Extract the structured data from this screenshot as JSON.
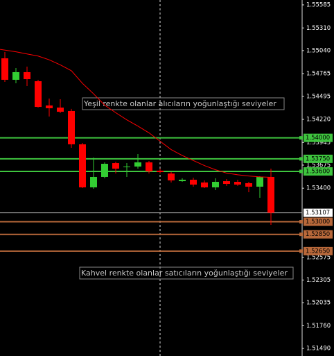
{
  "chart_data": {
    "type": "candlestick",
    "open": [
      1.54948,
      1.54692,
      1.54783,
      1.54675,
      1.54386,
      1.54361,
      1.5432,
      1.53923,
      1.5341,
      1.53534,
      1.53699,
      1.5365,
      1.53658,
      1.53708,
      1.53609,
      1.53575,
      1.53484,
      1.53501,
      1.53468,
      1.5341,
      1.53484,
      1.53476,
      1.5346,
      1.53418,
      1.53534
    ],
    "high": [
      1.55023,
      1.54832,
      1.54849,
      1.54692,
      1.54469,
      1.5446,
      1.54345,
      1.53939,
      1.53766,
      1.53708,
      1.53716,
      1.53699,
      1.53807,
      1.53724,
      1.53633,
      1.53592,
      1.53518,
      1.53526,
      1.53493,
      1.53518,
      1.53509,
      1.53501,
      1.53476,
      1.53542,
      1.53633
    ],
    "low": [
      1.54667,
      1.54651,
      1.54617,
      1.54361,
      1.54254,
      1.54295,
      1.53881,
      1.53402,
      1.53393,
      1.53518,
      1.53575,
      1.53534,
      1.53633,
      1.53575,
      1.53575,
      1.53468,
      1.53476,
      1.53418,
      1.53402,
      1.53377,
      1.53427,
      1.53427,
      1.53352,
      1.53286,
      1.52963
    ],
    "close": [
      1.54692,
      1.54783,
      1.547,
      1.54369,
      1.54353,
      1.54311,
      1.53923,
      1.5341,
      1.53534,
      1.53691,
      1.53633,
      1.53658,
      1.53708,
      1.536,
      1.53592,
      1.53493,
      1.53501,
      1.53443,
      1.5341,
      1.53476,
      1.53451,
      1.53443,
      1.53418,
      1.53534,
      1.53107
    ],
    "ma": [
      1.55055,
      1.55026,
      1.55,
      1.54975,
      1.5493,
      1.5487,
      1.548,
      1.5465,
      1.54525,
      1.5439,
      1.543,
      1.54215,
      1.5414,
      1.5406,
      1.5396,
      1.5386,
      1.5379,
      1.5373,
      1.5367,
      1.5362,
      1.5358,
      1.5356,
      1.53545,
      1.53535,
      1.5353
    ],
    "up_color": "#32cd32",
    "down_color": "#ff0000",
    "ma_color": "#ff0000",
    "ylim": [
      1.514,
      1.55643
    ],
    "yticks": [
      1.55585,
      {
        "value": 1.5531,
        "label": "1.55310"
      },
      {
        "value": 1.5504,
        "label": "1.55040"
      },
      1.54765,
      1.54495,
      {
        "value": 1.5422,
        "label": "1.54220"
      },
      1.53945,
      1.53675,
      {
        "value": 1.534,
        "label": "1.53400"
      },
      1.52575,
      1.52305,
      1.52035,
      {
        "value": 1.5176,
        "label": "1.51760"
      },
      {
        "value": 1.5149,
        "label": "1.51490"
      }
    ],
    "levels": [
      {
        "value": 1.54,
        "label": "1.54000",
        "color": "#3ec43e"
      },
      {
        "value": 1.5375,
        "label": "1.53750",
        "color": "#3ec43e"
      },
      {
        "value": 1.536,
        "label": "1.53600",
        "color": "#3ec43e"
      },
      {
        "value": 1.53,
        "label": "1.53000",
        "color": "#b8683a"
      },
      {
        "value": 1.5285,
        "label": "1.52850",
        "color": "#b8683a"
      },
      {
        "value": 1.5265,
        "label": "1.52650",
        "color": "#b8683a"
      }
    ],
    "current_price": 1.53107,
    "annotations": [
      "Yeşil renkte olanlar alıcıların yoğunlaştığı seviyeler",
      "Kahvel renkte olanlar satıcıların yoğunlaştığı seviyeler"
    ]
  }
}
